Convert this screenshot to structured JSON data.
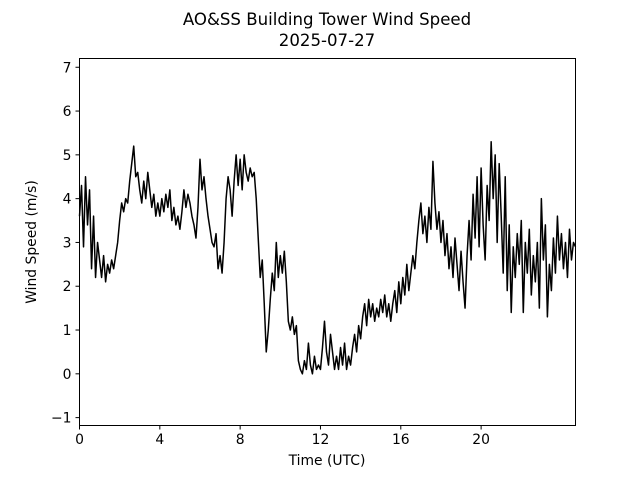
{
  "figure": {
    "title": "AO&SS Building Tower Wind Speed",
    "subtitle": "2025-07-27"
  },
  "chart_data": {
    "type": "line",
    "title": "AO&SS Building Tower Wind Speed",
    "subtitle": "2025-07-27",
    "xlabel": "Time (UTC)",
    "ylabel": "Wind Speed (m/s)",
    "xlim": [
      0,
      24.7
    ],
    "ylim": [
      -1.18,
      7.2
    ],
    "xticks": [
      0,
      4,
      8,
      12,
      16,
      20
    ],
    "xtick_labels": [
      "0",
      "4",
      "8",
      "12",
      "16",
      "20"
    ],
    "yticks": [
      -1,
      0,
      1,
      2,
      3,
      4,
      5,
      6,
      7
    ],
    "ytick_labels": [
      "−1",
      "0",
      "1",
      "2",
      "3",
      "4",
      "5",
      "6",
      "7"
    ],
    "grid": false,
    "legend": null,
    "line_color": "#000000",
    "line_width": 1.5,
    "series": [
      {
        "name": "wind_speed_mps",
        "x_start": 0.0,
        "x_step": 0.1,
        "values": [
          3.6,
          4.3,
          2.9,
          4.5,
          3.4,
          4.2,
          2.4,
          3.6,
          2.2,
          3.0,
          2.6,
          2.2,
          2.7,
          2.1,
          2.5,
          2.3,
          2.6,
          2.4,
          2.7,
          3.0,
          3.5,
          3.9,
          3.7,
          4.0,
          3.9,
          4.4,
          4.8,
          5.2,
          4.5,
          4.6,
          4.2,
          3.9,
          4.4,
          4.0,
          4.6,
          4.2,
          3.8,
          4.1,
          3.6,
          3.9,
          3.6,
          4.0,
          3.7,
          4.1,
          3.8,
          4.2,
          3.5,
          3.8,
          3.4,
          3.6,
          3.3,
          3.7,
          4.2,
          3.8,
          4.1,
          3.9,
          3.6,
          3.4,
          3.1,
          3.8,
          4.9,
          4.2,
          4.5,
          4.0,
          3.6,
          3.3,
          3.0,
          2.9,
          3.2,
          2.4,
          2.7,
          2.3,
          3.0,
          4.0,
          4.5,
          4.2,
          3.6,
          4.4,
          5.0,
          4.3,
          4.9,
          4.2,
          5.0,
          4.6,
          4.4,
          4.7,
          4.5,
          4.6,
          4.0,
          3.1,
          2.2,
          2.6,
          1.6,
          0.5,
          1.0,
          1.7,
          2.3,
          1.9,
          3.0,
          2.2,
          2.7,
          2.3,
          2.8,
          2.1,
          1.2,
          1.0,
          1.3,
          0.9,
          1.1,
          0.3,
          0.1,
          0.0,
          0.3,
          0.1,
          0.7,
          0.2,
          0.0,
          0.4,
          0.1,
          0.2,
          0.1,
          0.6,
          1.2,
          0.5,
          0.2,
          0.9,
          0.5,
          0.1,
          0.4,
          0.1,
          0.6,
          0.2,
          0.7,
          0.1,
          0.4,
          0.2,
          0.6,
          0.9,
          0.5,
          1.1,
          0.8,
          1.3,
          1.6,
          1.1,
          1.7,
          1.3,
          1.6,
          1.2,
          1.5,
          1.3,
          1.7,
          1.4,
          1.8,
          1.3,
          1.6,
          1.2,
          1.6,
          1.9,
          1.4,
          2.1,
          1.6,
          2.2,
          1.8,
          2.5,
          1.9,
          2.3,
          2.7,
          2.4,
          3.0,
          3.5,
          3.9,
          3.2,
          3.6,
          3.0,
          3.8,
          3.3,
          4.85,
          3.9,
          3.3,
          3.7,
          3.0,
          3.5,
          2.7,
          3.2,
          2.4,
          2.9,
          2.2,
          3.1,
          2.5,
          1.9,
          2.8,
          2.1,
          1.5,
          2.7,
          3.5,
          2.6,
          4.1,
          3.1,
          4.5,
          2.9,
          4.7,
          3.4,
          2.6,
          4.3,
          3.5,
          5.3,
          4.0,
          5.0,
          3.0,
          4.8,
          3.6,
          2.3,
          4.5,
          1.9,
          3.4,
          1.4,
          2.9,
          2.2,
          3.2,
          2.5,
          3.5,
          1.4,
          3.0,
          2.3,
          3.3,
          1.8,
          2.7,
          2.1,
          3.0,
          1.5,
          4.0,
          2.6,
          3.4,
          1.3,
          2.5,
          1.9,
          3.1,
          2.3,
          3.6,
          2.6,
          3.2,
          2.4,
          3.0,
          2.2,
          3.3,
          2.6,
          3.0,
          2.9
        ]
      }
    ]
  }
}
